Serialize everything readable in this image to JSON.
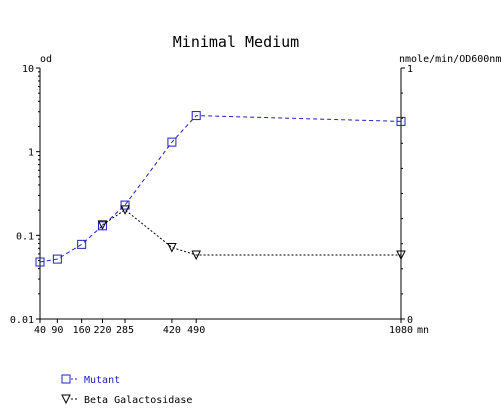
{
  "chart_data": {
    "type": "line",
    "title": "Minimal Medium",
    "x_unit_label": "mn",
    "left_axis": {
      "label": "od",
      "scale": "log",
      "ylim": [
        0.01,
        10
      ],
      "ticks": [
        "10",
        "1",
        "0.1",
        "0.01"
      ]
    },
    "right_axis": {
      "label": "nmole/min/OD600nm",
      "scale": "linear",
      "ylim": [
        0,
        1
      ],
      "ticks": [
        "1",
        "0"
      ]
    },
    "x_ticks": [
      {
        "value": 40,
        "label": "40"
      },
      {
        "value": 90,
        "label": "90"
      },
      {
        "value": 160,
        "label": "160"
      },
      {
        "value": 220,
        "label": "220"
      },
      {
        "value": 285,
        "label": "285"
      },
      {
        "value": 420,
        "label": "420"
      },
      {
        "value": 490,
        "label": "490"
      },
      {
        "value": 1080,
        "label": "1080"
      }
    ],
    "xlim": [
      40,
      1080
    ],
    "grid": false,
    "legend_position": "bottom-left",
    "series": [
      {
        "name": "Mutant",
        "axis": "left",
        "marker": "square",
        "color": "#2020c0",
        "line_style": "dashed",
        "points": [
          {
            "x": 40,
            "y": 0.048
          },
          {
            "x": 90,
            "y": 0.052
          },
          {
            "x": 160,
            "y": 0.078
          },
          {
            "x": 220,
            "y": 0.13
          },
          {
            "x": 285,
            "y": 0.23
          },
          {
            "x": 420,
            "y": 1.3
          },
          {
            "x": 490,
            "y": 2.7
          },
          {
            "x": 1080,
            "y": 2.3
          }
        ]
      },
      {
        "name": "Beta Galactosidase",
        "axis": "right",
        "marker": "triangle-down",
        "color": "#000000",
        "line_style": "dotted",
        "points": [
          {
            "x": 220,
            "y": 0.375
          },
          {
            "x": 285,
            "y": 0.435
          },
          {
            "x": 420,
            "y": 0.285
          },
          {
            "x": 490,
            "y": 0.255
          },
          {
            "x": 1080,
            "y": 0.255
          }
        ]
      }
    ]
  }
}
